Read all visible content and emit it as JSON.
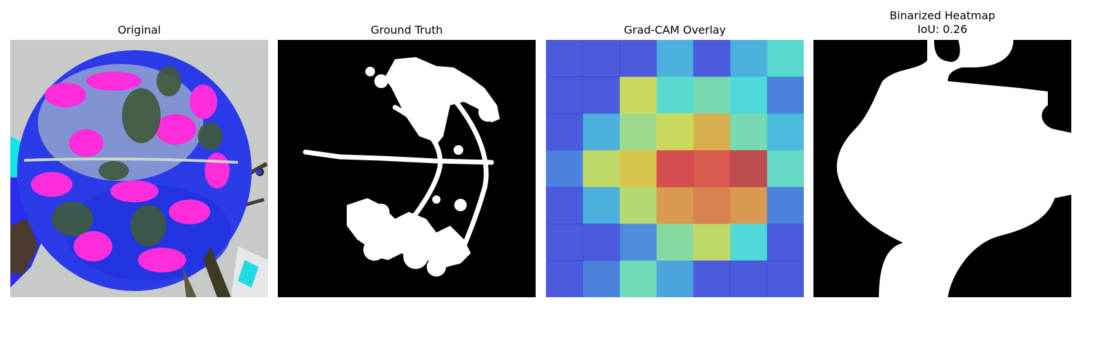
{
  "panels": [
    {
      "title": "Original"
    },
    {
      "title": "Ground Truth"
    },
    {
      "title": "Grad-CAM Overlay"
    },
    {
      "title": "Binarized Heatmap",
      "subtitle": "IoU: 0.26"
    }
  ],
  "gradcam": {
    "grid": [
      [
        0.15,
        0.15,
        0.15,
        0.3,
        0.15,
        0.3,
        0.4
      ],
      [
        0.15,
        0.15,
        0.6,
        0.4,
        0.45,
        0.38,
        0.22
      ],
      [
        0.15,
        0.3,
        0.52,
        0.6,
        0.7,
        0.45,
        0.32
      ],
      [
        0.22,
        0.58,
        0.66,
        0.88,
        0.85,
        0.92,
        0.42
      ],
      [
        0.15,
        0.3,
        0.56,
        0.74,
        0.78,
        0.74,
        0.22
      ],
      [
        0.15,
        0.15,
        0.24,
        0.48,
        0.58,
        0.38,
        0.15
      ],
      [
        0.15,
        0.22,
        0.44,
        0.28,
        0.15,
        0.15,
        0.15
      ]
    ],
    "colormap": "jet",
    "opacity": 0.55
  },
  "colors": {
    "leaf_magenta": "#ff2ddb",
    "leaf_blue": "#1f2ef2",
    "leaf_dark": "#3f5a3a",
    "background_gray": "#b9bcbd",
    "mask_white": "#ffffff",
    "mask_black": "#000000"
  }
}
